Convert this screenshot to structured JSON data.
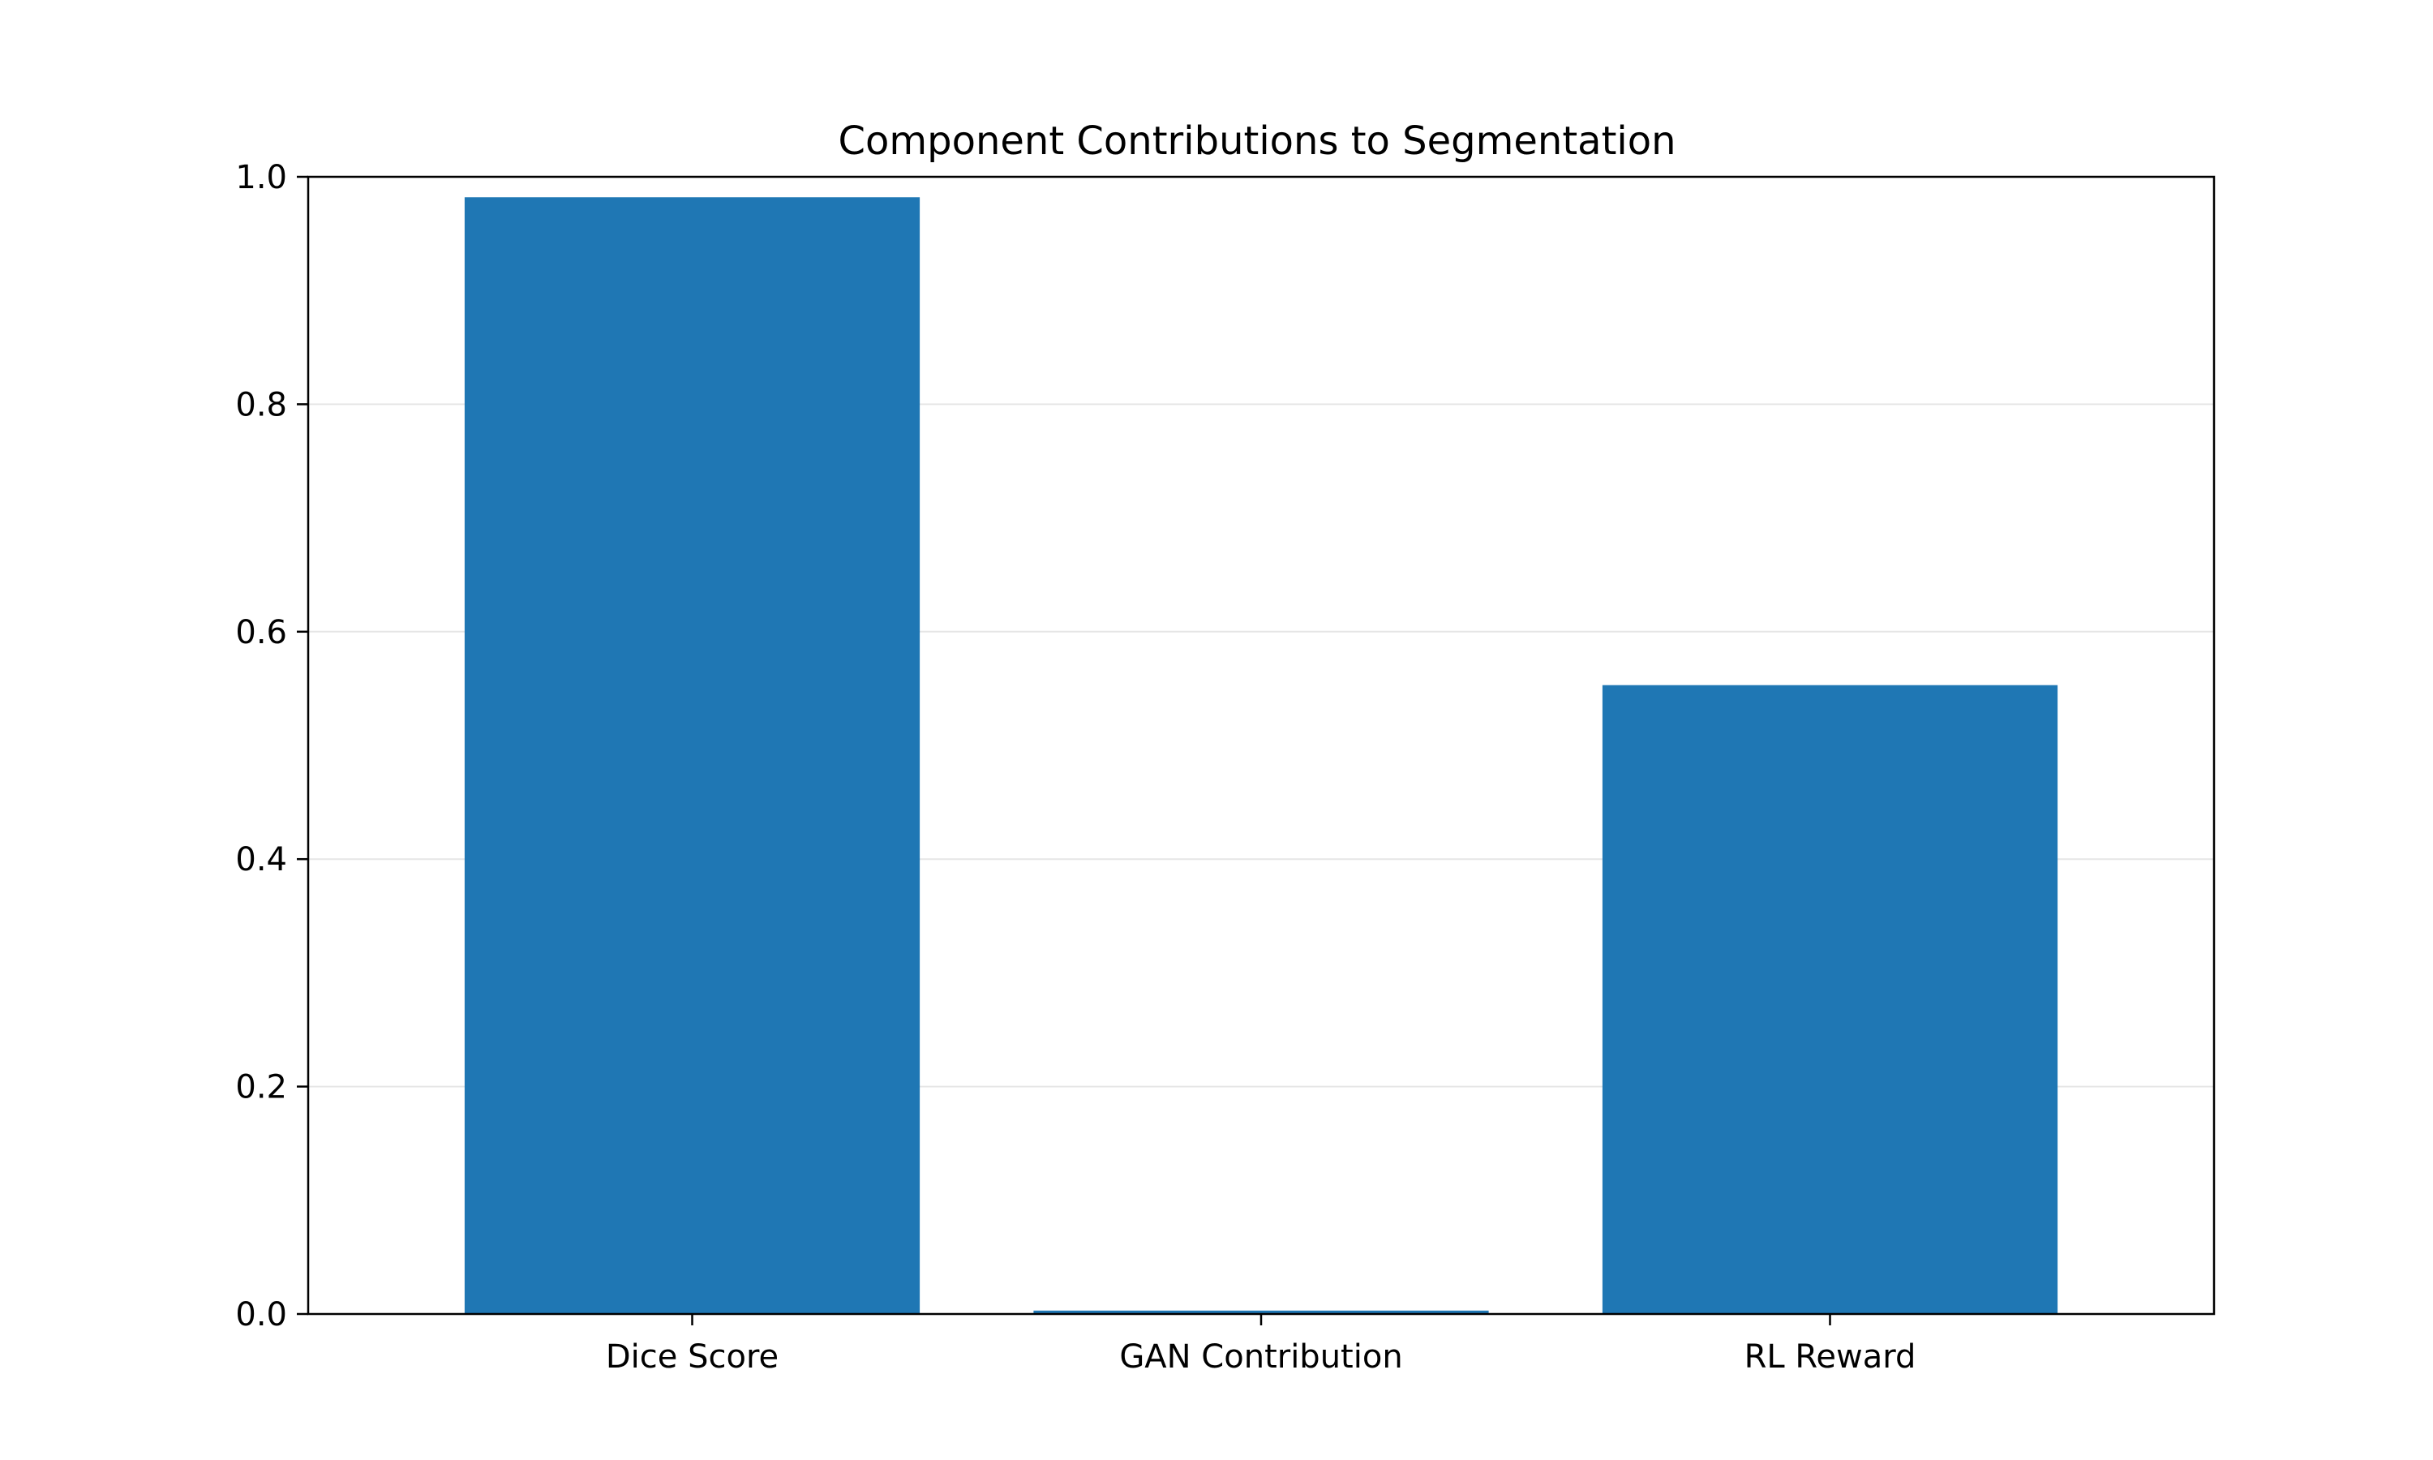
{
  "chart_data": {
    "type": "bar",
    "title": "Component Contributions to Segmentation",
    "xlabel": "",
    "ylabel": "",
    "categories": [
      "Dice Score",
      "GAN Contribution",
      "RL Reward"
    ],
    "values": [
      0.982,
      0.003,
      0.553
    ],
    "ylim": [
      0,
      1.0
    ],
    "yticks": [
      "0.0",
      "0.2",
      "0.4",
      "0.6",
      "0.8",
      "1.0"
    ],
    "grid": "horizontal",
    "legend": "none",
    "bar_color": "#1f77b4",
    "grid_color": "#e6e6e6"
  }
}
